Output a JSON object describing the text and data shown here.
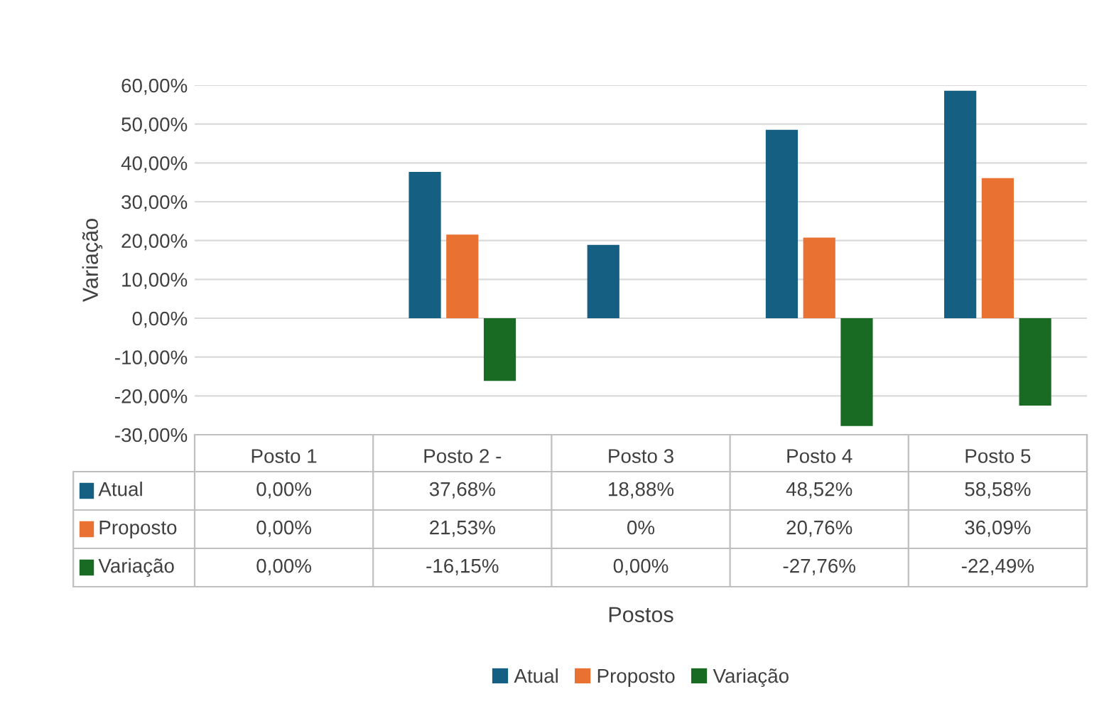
{
  "chart_data": {
    "type": "bar",
    "ylabel": "Variação",
    "annotations": [
      "Postos"
    ],
    "categories": [
      "Posto 1",
      "Posto 2 -",
      "Posto 3",
      "Posto 4",
      "Posto 5"
    ],
    "series": [
      {
        "name": "Atual",
        "color": "#156082",
        "values": [
          0,
          37.68,
          18.88,
          48.52,
          58.58
        ],
        "value_labels": [
          "0,00%",
          "37,68%",
          "18,88%",
          "48,52%",
          "58,58%"
        ]
      },
      {
        "name": "Proposto",
        "color": "#e97132",
        "values": [
          0,
          21.53,
          0,
          20.76,
          36.09
        ],
        "value_labels": [
          "0,00%",
          "21,53%",
          "0%",
          "20,76%",
          "36,09%"
        ]
      },
      {
        "name": "Variação",
        "color": "#196b24",
        "values": [
          0,
          -16.15,
          0,
          -27.76,
          -22.49
        ],
        "value_labels": [
          "0,00%",
          "-16,15%",
          "0,00%",
          "-27,76%",
          "-22,49%"
        ]
      }
    ],
    "ylim": [
      -30,
      60
    ],
    "yticks": [
      {
        "value": -30,
        "label": "-30,00%"
      },
      {
        "value": -20,
        "label": "-20,00%"
      },
      {
        "value": -10,
        "label": "-10,00%"
      },
      {
        "value": 0,
        "label": "0,00%"
      },
      {
        "value": 10,
        "label": "10,00%"
      },
      {
        "value": 20,
        "label": "20,00%"
      },
      {
        "value": 30,
        "label": "30,00%"
      },
      {
        "value": 40,
        "label": "40,00%"
      },
      {
        "value": 50,
        "label": "50,00%"
      },
      {
        "value": 60,
        "label": "60,00%"
      }
    ],
    "grid": "y",
    "legend": "bottom"
  }
}
